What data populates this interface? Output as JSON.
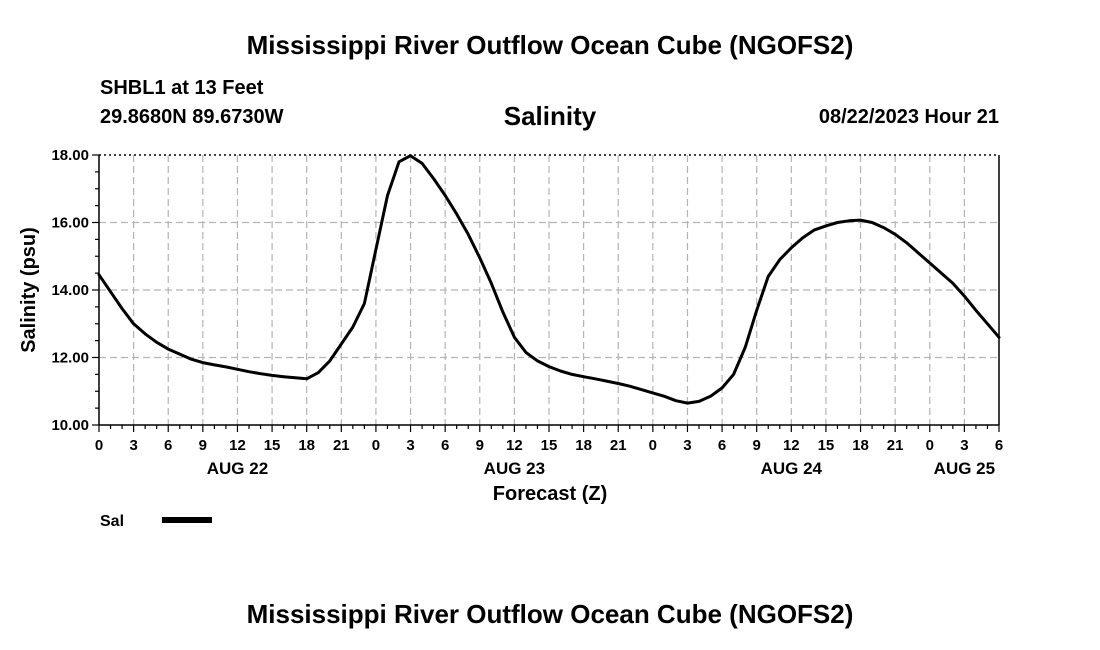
{
  "header": {
    "title": "Mississippi River Outflow Ocean Cube (NGOFS2)",
    "station": "SHBL1 at 13 Feet",
    "coordinates": "29.8680N  89.6730W",
    "datetime": "08/22/2023 Hour 21"
  },
  "footer": {
    "title": "Mississippi River Outflow Ocean Cube (NGOFS2)"
  },
  "chart_data": {
    "type": "line",
    "title": "Salinity",
    "xlabel": "Forecast (Z)",
    "ylabel": "Salinity (psu)",
    "x_unit": "hours since AUG 22 00Z",
    "xlim": [
      0,
      78
    ],
    "ylim": [
      10,
      18
    ],
    "grid": true,
    "x_ticks": [
      0,
      3,
      6,
      9,
      12,
      15,
      18,
      21,
      24,
      27,
      30,
      33,
      36,
      39,
      42,
      45,
      48,
      51,
      54,
      57,
      60,
      63,
      66,
      69,
      72,
      75,
      78
    ],
    "x_tick_labels": [
      "0",
      "3",
      "6",
      "9",
      "12",
      "15",
      "18",
      "21",
      "0",
      "3",
      "6",
      "9",
      "12",
      "15",
      "18",
      "21",
      "0",
      "3",
      "6",
      "9",
      "12",
      "15",
      "18",
      "21",
      "0",
      "3",
      "6"
    ],
    "date_labels": [
      {
        "hour": 12,
        "label": "AUG 22"
      },
      {
        "hour": 36,
        "label": "AUG 23"
      },
      {
        "hour": 60,
        "label": "AUG 24"
      },
      {
        "hour": 75,
        "label": "AUG 25"
      }
    ],
    "y_ticks": [
      10,
      12,
      14,
      16,
      18
    ],
    "y_tick_labels": [
      "10.00",
      "12.00",
      "14.00",
      "16.00",
      "18.00"
    ],
    "series": [
      {
        "name": "Sal",
        "color": "#000000",
        "x": [
          0,
          1,
          2,
          3,
          4,
          5,
          6,
          7,
          8,
          9,
          10,
          11,
          12,
          13,
          14,
          15,
          16,
          17,
          18,
          19,
          20,
          21,
          22,
          23,
          24,
          25,
          26,
          27,
          28,
          29,
          30,
          31,
          32,
          33,
          34,
          35,
          36,
          37,
          38,
          39,
          40,
          41,
          42,
          43,
          44,
          45,
          46,
          47,
          48,
          49,
          50,
          51,
          52,
          53,
          54,
          55,
          56,
          57,
          58,
          59,
          60,
          61,
          62,
          63,
          64,
          65,
          66,
          67,
          68,
          69,
          70,
          71,
          72,
          73,
          74,
          75,
          76,
          77,
          78
        ],
        "values": [
          14.45,
          13.95,
          13.45,
          13.0,
          12.7,
          12.45,
          12.25,
          12.1,
          11.95,
          11.85,
          11.78,
          11.72,
          11.65,
          11.58,
          11.52,
          11.47,
          11.43,
          11.4,
          11.37,
          11.55,
          11.9,
          12.4,
          12.9,
          13.6,
          15.2,
          16.8,
          17.8,
          17.98,
          17.75,
          17.3,
          16.8,
          16.25,
          15.65,
          14.95,
          14.2,
          13.35,
          12.6,
          12.15,
          11.9,
          11.73,
          11.6,
          11.5,
          11.43,
          11.37,
          11.3,
          11.23,
          11.15,
          11.05,
          10.95,
          10.85,
          10.72,
          10.65,
          10.7,
          10.85,
          11.1,
          11.5,
          12.3,
          13.4,
          14.4,
          14.9,
          15.25,
          15.55,
          15.78,
          15.9,
          16.0,
          16.05,
          16.07,
          16.0,
          15.85,
          15.65,
          15.4,
          15.1,
          14.8,
          14.5,
          14.2,
          13.82,
          13.4,
          13.0,
          12.6
        ]
      }
    ],
    "legend": {
      "label": "Sal",
      "placement": "bottom-left"
    }
  }
}
